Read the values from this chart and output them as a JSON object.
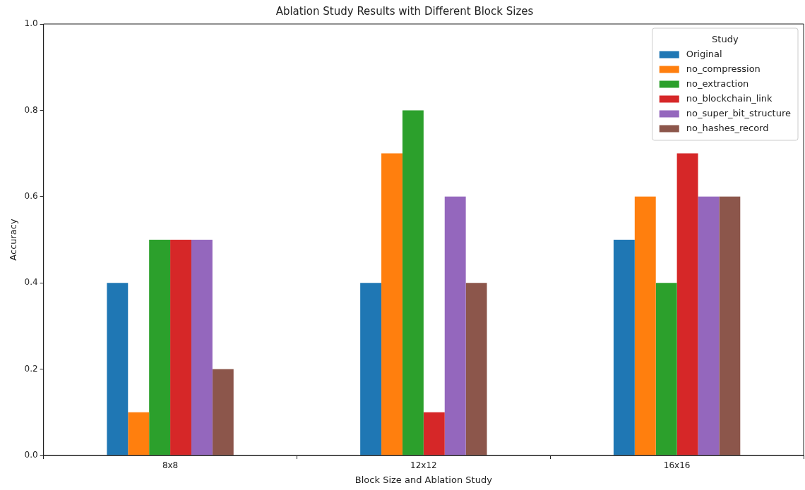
{
  "chart_data": {
    "type": "bar",
    "title": "Ablation Study Results with Different Block Sizes",
    "xlabel": "Block Size and Ablation Study",
    "ylabel": "Accuracy",
    "legend_title": "Study",
    "legend": "top right",
    "grid": false,
    "categories": [
      "8x8",
      "12x12",
      "16x16"
    ],
    "ylim": [
      0,
      1
    ],
    "yticks": [
      {
        "value": 0,
        "label": "0.0"
      },
      {
        "value": 0.2,
        "label": "0.2"
      },
      {
        "value": 0.4,
        "label": "0.4"
      },
      {
        "value": 0.6,
        "label": "0.6"
      },
      {
        "value": 0.8,
        "label": "0.8"
      },
      {
        "value": 1,
        "label": "1.0"
      }
    ],
    "series": [
      {
        "name": "Original",
        "color": "#1f77b4",
        "values": [
          0.4,
          0.4,
          0.5
        ]
      },
      {
        "name": "no_compression",
        "color": "#ff7f0e",
        "values": [
          0.1,
          0.7,
          0.6
        ]
      },
      {
        "name": "no_extraction",
        "color": "#2ca02c",
        "values": [
          0.5,
          0.8,
          0.4
        ]
      },
      {
        "name": "no_blockchain_link",
        "color": "#d62728",
        "values": [
          0.5,
          0.1,
          0.7
        ]
      },
      {
        "name": "no_super_bit_structure",
        "color": "#9467bd",
        "values": [
          0.5,
          0.6,
          0.6
        ]
      },
      {
        "name": "no_hashes_record",
        "color": "#8c564b",
        "values": [
          0.2,
          0.4,
          0.6
        ]
      }
    ]
  }
}
